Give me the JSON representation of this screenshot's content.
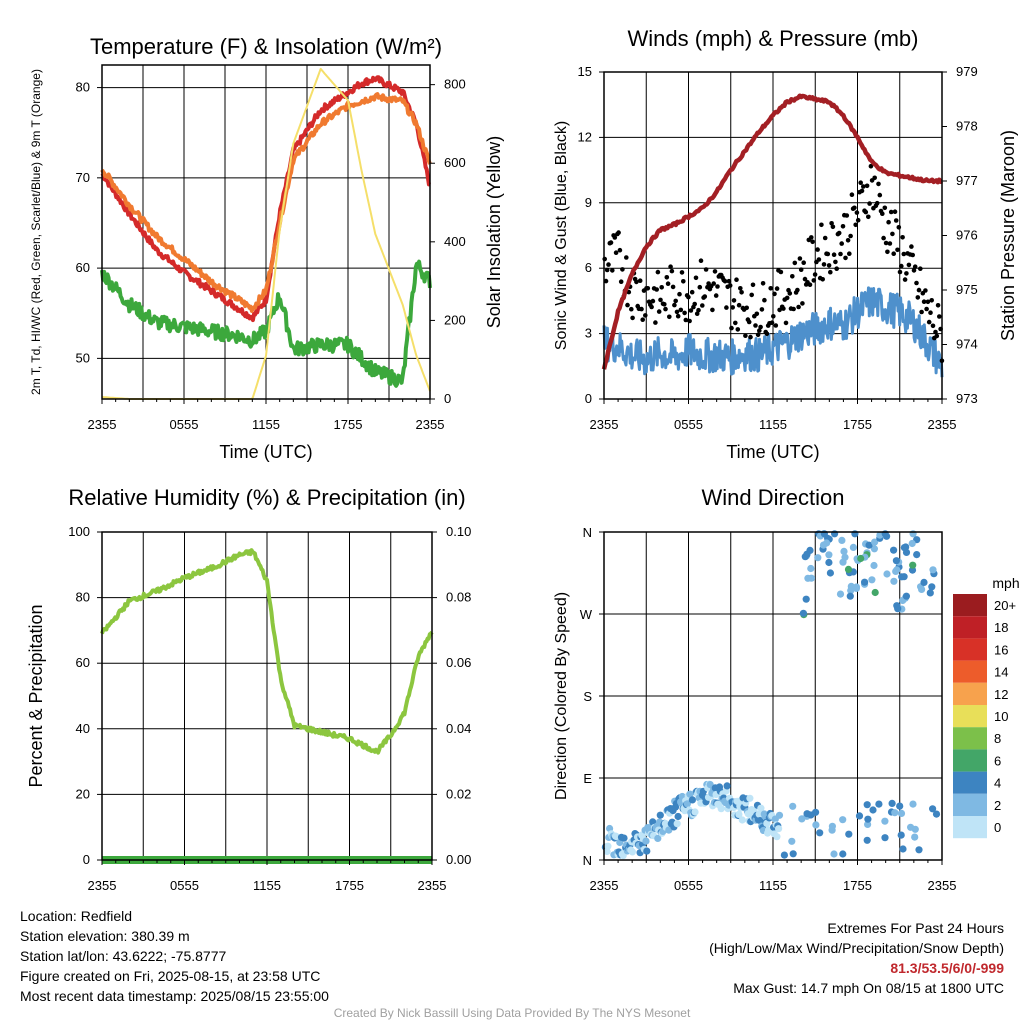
{
  "chart_data": [
    {
      "type": "line",
      "title": "Temperature (F) & Insolation (W/m²)",
      "xlabel": "Time (UTC)",
      "ylabel_left": "2m T, Td, HI/WC (Red, Green, Scarlet/Blue) & 9m T (Orange)",
      "ylabel_right": "Solar Insolation (Yellow)",
      "x_ticks": [
        "2355",
        "0555",
        "1155",
        "1755",
        "2355"
      ],
      "ylim_left": [
        45.5,
        82.5
      ],
      "yticks_left": [
        50,
        60,
        70,
        80
      ],
      "ylim_right": [
        0,
        850
      ],
      "yticks_right": [
        0,
        200,
        400,
        600,
        800
      ],
      "x_hours": [
        0,
        2,
        4,
        6,
        8,
        10,
        11,
        12,
        13,
        14,
        16,
        18,
        19,
        20,
        22,
        23,
        24
      ],
      "series": [
        {
          "name": "2m T",
          "color": "#d42a2a",
          "values": [
            70.5,
            66,
            62,
            59.5,
            57.5,
            55.5,
            54.5,
            56.5,
            66,
            73,
            77.5,
            79.5,
            80.5,
            81,
            79.5,
            76,
            69
          ]
        },
        {
          "name": "9m T",
          "color": "#f07a30",
          "values": [
            71,
            67,
            63.5,
            61,
            58.5,
            56.5,
            55.5,
            57.5,
            65,
            72,
            76,
            78,
            78.5,
            79,
            78.5,
            76,
            71.5
          ]
        },
        {
          "name": "Td",
          "color": "#3ca83c",
          "values": [
            59.5,
            56,
            54,
            53.5,
            53,
            52.5,
            52,
            53,
            57,
            51,
            51.5,
            51.5,
            50,
            48.5,
            47.5,
            60.5,
            58.5
          ]
        },
        {
          "name": "Solar Insolation",
          "color": "#f5df6a",
          "axis": "right",
          "values": [
            5,
            0,
            0,
            0,
            0,
            0,
            0,
            110,
            430,
            650,
            840,
            760,
            580,
            420,
            240,
            110,
            20
          ]
        }
      ]
    },
    {
      "type": "scatter",
      "title": "Winds (mph) & Pressure (mb)",
      "xlabel": "Time (UTC)",
      "ylabel_left": "Sonic Wind & Gust (Blue, Black)",
      "ylabel_right": "Station Pressure (Maroon)",
      "x_ticks": [
        "2355",
        "0555",
        "1155",
        "1755",
        "2355"
      ],
      "ylim_left": [
        0,
        15
      ],
      "yticks_left": [
        0,
        3,
        6,
        9,
        12,
        15
      ],
      "ylim_right": [
        973,
        979
      ],
      "yticks_right": [
        973,
        974,
        975,
        976,
        977,
        978,
        979
      ],
      "x_hours": [
        0,
        1,
        2,
        3,
        4,
        5,
        6,
        7,
        8,
        9,
        10,
        11,
        12,
        13,
        14,
        15,
        16,
        17,
        18,
        19,
        20,
        21,
        22,
        23,
        24
      ],
      "series": [
        {
          "name": "Sonic Wind",
          "color": "#4e90cc",
          "values": [
            2.6,
            2.4,
            2.0,
            1.8,
            2.1,
            1.9,
            2.2,
            2.0,
            2.0,
            1.9,
            2.1,
            2.0,
            2.3,
            2.6,
            3.0,
            3.2,
            3.5,
            3.4,
            4.0,
            4.5,
            4.2,
            4.0,
            3.5,
            2.5,
            1.5
          ]
        },
        {
          "name": "Gust",
          "color": "#000000",
          "values": [
            6.0,
            6.5,
            5.0,
            4.8,
            4.5,
            5.0,
            4.8,
            5.2,
            5.0,
            4.5,
            4.2,
            4.0,
            4.5,
            4.8,
            5.5,
            6.5,
            7.0,
            7.5,
            8.5,
            10.0,
            8.0,
            7.0,
            5.5,
            4.0,
            2.8
          ]
        },
        {
          "name": "Station Pressure",
          "color": "#a31f24",
          "axis": "right",
          "values": [
            973.55,
            974.6,
            975.3,
            975.8,
            976.1,
            976.2,
            976.35,
            976.5,
            976.8,
            977.2,
            977.55,
            977.9,
            978.2,
            978.45,
            978.55,
            978.5,
            978.45,
            978.2,
            977.8,
            977.35,
            977.15,
            977.1,
            977.05,
            977.0,
            977.0
          ]
        }
      ]
    },
    {
      "type": "line",
      "title": "Relative Humidity (%) & Precipitation (in)",
      "ylabel_left": "Percent & Precipitation",
      "x_ticks": [
        "2355",
        "0555",
        "1155",
        "1755",
        "2355"
      ],
      "ylim_left": [
        0,
        100
      ],
      "yticks_left": [
        0,
        20,
        40,
        60,
        80,
        100
      ],
      "ylim_right": [
        0,
        0.1
      ],
      "yticks_right": [
        "0.00",
        "0.02",
        "0.04",
        "0.06",
        "0.08",
        "0.10"
      ],
      "x_hours": [
        0,
        2,
        4,
        6,
        8,
        10,
        11,
        12,
        13,
        14,
        16,
        18,
        19,
        20,
        21,
        22,
        23,
        24
      ],
      "series": [
        {
          "name": "Relative Humidity",
          "color": "#8cc63f",
          "values": [
            69,
            79,
            82,
            86,
            89,
            93,
            94,
            85,
            55,
            41,
            39,
            37,
            35,
            33,
            38,
            45,
            62,
            70
          ]
        },
        {
          "name": "Precipitation",
          "color": "#3ca83c",
          "axis": "right",
          "values": [
            0,
            0,
            0,
            0,
            0,
            0,
            0,
            0,
            0,
            0,
            0,
            0,
            0,
            0,
            0,
            0,
            0,
            0
          ]
        }
      ]
    },
    {
      "type": "scatter",
      "title": "Wind Direction",
      "ylabel_left": "Direction (Colored By Speed)",
      "x_ticks": [
        "2355",
        "0555",
        "1155",
        "1755",
        "2355"
      ],
      "y_ticks": [
        "N",
        "E",
        "S",
        "W",
        "N"
      ],
      "ylim_left": [
        0,
        360
      ],
      "colorbar": {
        "title": "mph",
        "labels": [
          "20+",
          "18",
          "16",
          "14",
          "12",
          "10",
          "8",
          "6",
          "4",
          "2",
          "0"
        ],
        "colors": [
          "#9b1c1f",
          "#bf2026",
          "#d83127",
          "#ed5c2b",
          "#f7a24d",
          "#e8df59",
          "#7cc04a",
          "#43a668",
          "#3d84c1",
          "#7fb9e3",
          "#bfe4f7"
        ]
      },
      "series": [
        {
          "name": "Wind direction (degrees, early period)",
          "x_hours": [
            0,
            2,
            3,
            4,
            5,
            6,
            7,
            8,
            9,
            10,
            11,
            12
          ],
          "values": [
            20,
            18,
            22,
            35,
            50,
            60,
            70,
            72,
            65,
            55,
            50,
            40
          ]
        },
        {
          "name": "Wind direction (degrees, afternoon)",
          "x_hours": [
            14,
            15,
            16,
            17,
            18,
            19,
            20,
            21,
            22,
            23
          ],
          "values": [
            300,
            320,
            340,
            315,
            330,
            310,
            345,
            300,
            325,
            310
          ]
        }
      ]
    }
  ],
  "info": {
    "location": "Location: Redfield",
    "elevation": "Station elevation: 380.39 m",
    "latlon": "Station lat/lon: 43.6222; -75.8777",
    "created": "Figure created on Fri, 2025-08-15, at 23:58 UTC",
    "recent": "Most recent data timestamp: 2025/08/15 23:55:00",
    "extremes_title": "Extremes For Past 24 Hours",
    "extremes_subtitle": "(High/Low/Max Wind/Precipitation/Snow Depth)",
    "extremes_values": "81.3/53.5/6/0/-999",
    "max_gust": "Max Gust: 14.7 mph On 08/15 at 1800 UTC"
  },
  "credit": "Created By Nick Bassill Using Data Provided By The NYS Mesonet"
}
